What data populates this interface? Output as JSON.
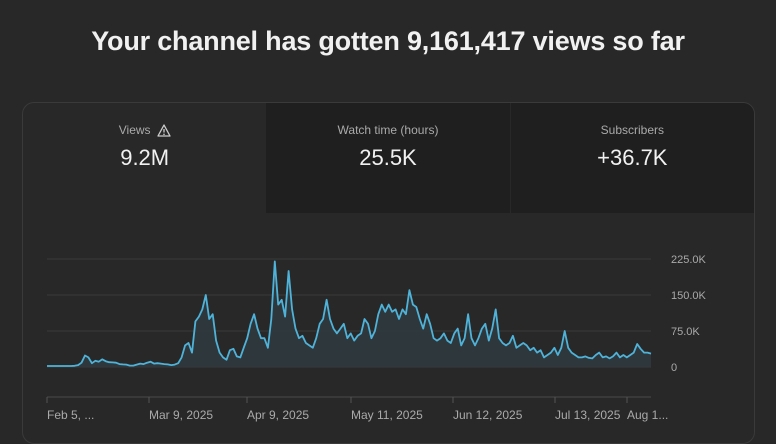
{
  "headline": "Your channel has gotten 9,161,417 views so far",
  "metrics": [
    {
      "label": "Views",
      "value": "9.2M",
      "icon": "warning-icon",
      "selected": true
    },
    {
      "label": "Watch time (hours)",
      "value": "25.5K",
      "selected": false
    },
    {
      "label": "Subscribers",
      "value": "+36.7K",
      "selected": false
    }
  ],
  "colors": {
    "line": "#4fb3d9",
    "background": "#282828",
    "tab_inactive": "#1f1f1f"
  },
  "chart_data": {
    "type": "area",
    "y_ticks": [
      0,
      75000,
      150000,
      225000
    ],
    "y_tick_labels": [
      "0",
      "75.0K",
      "150.0K",
      "225.0K"
    ],
    "ylim": [
      0,
      230000
    ],
    "x_tick_labels": [
      "Feb 5, ...",
      "Mar 9, 2025",
      "Apr 9, 2025",
      "May 11, 2025",
      "Jun 12, 2025",
      "Jul 13, 2025",
      "Aug 1..."
    ],
    "grid": true,
    "series": [
      {
        "values": [
          2000,
          2000,
          2000,
          2000,
          2000,
          2000,
          2000,
          2000,
          2500,
          4000,
          9000,
          24000,
          20000,
          8000,
          13000,
          11000,
          16000,
          12000,
          10000,
          9500,
          9000,
          6000,
          5500,
          5000,
          3000,
          3000,
          5000,
          7000,
          6000,
          9000,
          11000,
          7000,
          8000,
          7000,
          6000,
          5500,
          4000,
          5000,
          8000,
          20000,
          45000,
          50000,
          30000,
          95000,
          105000,
          120000,
          150000,
          100000,
          110000,
          55000,
          30000,
          20000,
          15000,
          35000,
          38000,
          22000,
          20000,
          40000,
          60000,
          90000,
          110000,
          80000,
          60000,
          60000,
          40000,
          100000,
          220000,
          130000,
          140000,
          105000,
          200000,
          120000,
          80000,
          60000,
          65000,
          50000,
          45000,
          40000,
          60000,
          90000,
          100000,
          140000,
          100000,
          80000,
          70000,
          80000,
          90000,
          60000,
          70000,
          55000,
          65000,
          70000,
          100000,
          90000,
          60000,
          75000,
          110000,
          130000,
          115000,
          130000,
          115000,
          120000,
          100000,
          120000,
          110000,
          160000,
          130000,
          125000,
          100000,
          80000,
          110000,
          90000,
          60000,
          55000,
          60000,
          70000,
          55000,
          50000,
          70000,
          80000,
          45000,
          60000,
          110000,
          60000,
          45000,
          60000,
          80000,
          90000,
          55000,
          80000,
          120000,
          60000,
          50000,
          45000,
          50000,
          65000,
          40000,
          45000,
          50000,
          45000,
          35000,
          40000,
          30000,
          35000,
          20000,
          25000,
          30000,
          40000,
          25000,
          40000,
          75000,
          40000,
          30000,
          25000,
          20000,
          20000,
          22000,
          19000,
          18000,
          25000,
          30000,
          20000,
          22000,
          18000,
          22000,
          30000,
          20000,
          25000,
          20000,
          25000,
          30000,
          48000,
          38000,
          30000,
          30000,
          28000
        ]
      }
    ]
  }
}
